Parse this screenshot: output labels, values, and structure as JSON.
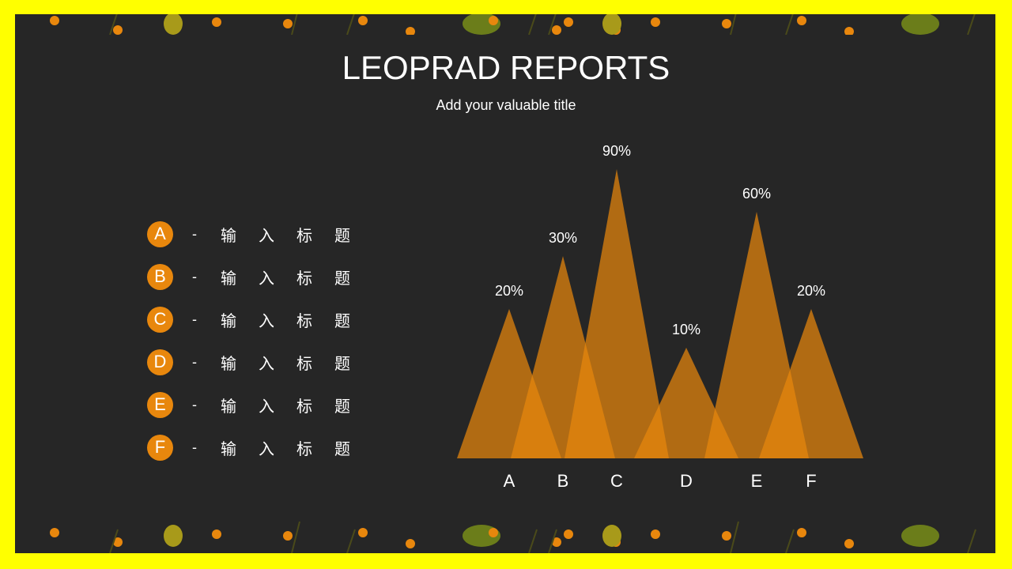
{
  "header": {
    "title": "LEOPRAD REPORTS",
    "subtitle": "Add your valuable title"
  },
  "legend_items": [
    {
      "badge": "A",
      "dash": "-",
      "text": "输入标题"
    },
    {
      "badge": "B",
      "dash": "-",
      "text": "输入标题"
    },
    {
      "badge": "C",
      "dash": "-",
      "text": "输入标题"
    },
    {
      "badge": "D",
      "dash": "-",
      "text": "输入标题"
    },
    {
      "badge": "E",
      "dash": "-",
      "text": "输入标题"
    },
    {
      "badge": "F",
      "dash": "-",
      "text": "输入标题"
    }
  ],
  "colors": {
    "border": "#ffff00",
    "background": "#262626",
    "accent": "#e8870d",
    "triangle": "#e8870d"
  },
  "chart_data": {
    "type": "area",
    "categories": [
      "A",
      "B",
      "C",
      "D",
      "E",
      "F"
    ],
    "values": [
      20,
      30,
      90,
      10,
      60,
      20
    ],
    "data_labels": [
      "20%",
      "30%",
      "90%",
      "10%",
      "60%",
      "20%"
    ],
    "title": "",
    "xlabel": "",
    "ylabel": "",
    "grid": false
  }
}
